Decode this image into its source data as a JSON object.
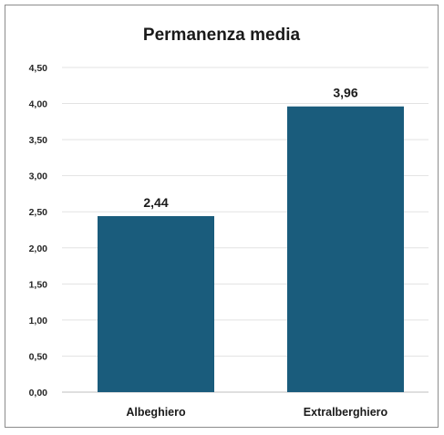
{
  "chart_data": {
    "type": "bar",
    "title": "Permanenza media",
    "categories": [
      "Albeghiero",
      "Extralberghiero"
    ],
    "values": [
      2.44,
      3.96
    ],
    "value_labels": [
      "2,44",
      "3,96"
    ],
    "xlabel": "",
    "ylabel": "",
    "ylim": [
      0,
      4.5
    ],
    "yticks": [
      0,
      0.5,
      1,
      1.5,
      2,
      2.5,
      3,
      3.5,
      4,
      4.5
    ],
    "ytick_labels": [
      "0,00",
      "0,50",
      "1,00",
      "1,50",
      "2,00",
      "2,50",
      "3,00",
      "3,50",
      "4,00",
      "4,50"
    ],
    "grid": true,
    "legend": "none",
    "bar_color": "#1a5c7c",
    "grid_color": "#e3e3e3"
  }
}
